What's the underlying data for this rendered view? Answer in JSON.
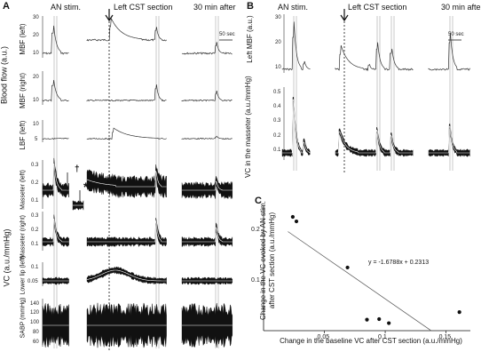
{
  "panels": {
    "a": {
      "label": "A",
      "headers": [
        "AN stim.",
        "Left CST section",
        "30 min after"
      ],
      "scale_bar": "50 sec",
      "group_labels": [
        "Blood flow (a.u.)",
        "VC (a.u./mmHg)"
      ],
      "star": "*",
      "dagger": "†",
      "traces": [
        {
          "label": "MBF (left)",
          "ticks": [
            "30",
            "20",
            "10"
          ]
        },
        {
          "label": "MBF (right)",
          "ticks": [
            "20",
            "10"
          ]
        },
        {
          "label": "LBF (left)",
          "ticks": [
            "10",
            "5"
          ]
        },
        {
          "label": "Masseter (left)",
          "ticks": [
            "0.3",
            "0.2",
            "0.1"
          ]
        },
        {
          "label": "Masseter (right)",
          "ticks": [
            "0.3",
            "0.2",
            "0.1"
          ]
        },
        {
          "label": "Lower lip (left)",
          "ticks": [
            "0.1",
            "0.05"
          ]
        },
        {
          "label": "SABP (mmHg)",
          "ticks": [
            "140",
            "120",
            "100",
            "80",
            "60"
          ]
        }
      ]
    },
    "b": {
      "label": "B",
      "headers": [
        "AN stim.",
        "Left CST section",
        "30 min after"
      ],
      "scale_bar": "50 sec",
      "traces": [
        {
          "label": "Left MBF (a.u.)",
          "ticks": [
            "30",
            "20",
            "10"
          ]
        },
        {
          "label": "VC in the masseter (a.u./mmHg)",
          "ticks": [
            "0.5",
            "0.4",
            "0.3",
            "0.2",
            "0.1"
          ]
        }
      ]
    },
    "c": {
      "label": "C",
      "equation": "y = -1.6788x + 0.2313"
    }
  },
  "chart_data": {
    "type": "scatter",
    "xlabel": "Change in the baseline VC after CST section (a.u./mmHg)",
    "ylabel": "Change in the VC evoked by AN stim. after CST section (a.u./mmHg)",
    "xlim": [
      0,
      0.17
    ],
    "ylim": [
      0,
      0.25
    ],
    "xticks": [
      "0.05",
      "0.1",
      "0.15"
    ],
    "yticks": [
      "0.1",
      "0.2"
    ],
    "points": [
      [
        0.024,
        0.227
      ],
      [
        0.027,
        0.218
      ],
      [
        0.069,
        0.126
      ],
      [
        0.085,
        0.022
      ],
      [
        0.095,
        0.023
      ],
      [
        0.103,
        0.015
      ],
      [
        0.161,
        0.037
      ]
    ],
    "trendline": {
      "slope": -1.6788,
      "intercept": 0.2313
    }
  }
}
